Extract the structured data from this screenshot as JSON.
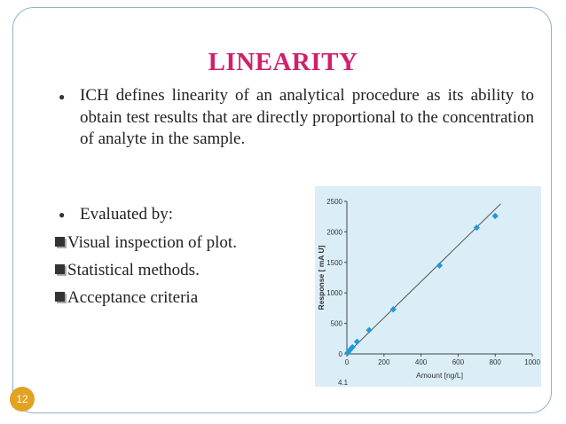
{
  "slide": {
    "title": "LINEARITY",
    "definition": "ICH defines linearity of an analytical procedure as its ability to obtain test results that are directly proportional to the concentration of analyte in the sample.",
    "evaluated_by": "Evaluated by:",
    "items": [
      "Visual inspection of plot.",
      "Statistical methods.",
      "Acceptance criteria"
    ],
    "page_number": "12",
    "colors": {
      "title": "#d0206c",
      "frame": "#8fb2c9",
      "page_badge": "#e2a224",
      "plot_bg": "#dbeef8",
      "markers": "#1e9ad9"
    }
  },
  "chart_data": {
    "type": "scatter",
    "title": "",
    "xlabel": "Amount [ng/L]",
    "ylabel": "Response [ mA U]",
    "xlim": [
      0,
      1000
    ],
    "ylim": [
      0,
      2500
    ],
    "xticks": [
      "0",
      "200",
      "400",
      "600",
      "800",
      "1000"
    ],
    "yticks": [
      "0",
      "500",
      "1000",
      "1500",
      "2000",
      "2500"
    ],
    "points": [
      {
        "x": 5,
        "y": 20
      },
      {
        "x": 15,
        "y": 60
      },
      {
        "x": 30,
        "y": 110
      },
      {
        "x": 55,
        "y": 200
      },
      {
        "x": 120,
        "y": 390
      },
      {
        "x": 250,
        "y": 730
      },
      {
        "x": 500,
        "y": 1450
      },
      {
        "x": 700,
        "y": 2070
      },
      {
        "x": 800,
        "y": 2260
      }
    ],
    "fit_line": {
      "x": [
        0,
        830
      ],
      "y": [
        0,
        2460
      ]
    },
    "cut_label": "4.1",
    "grid": false,
    "legend": "none"
  }
}
